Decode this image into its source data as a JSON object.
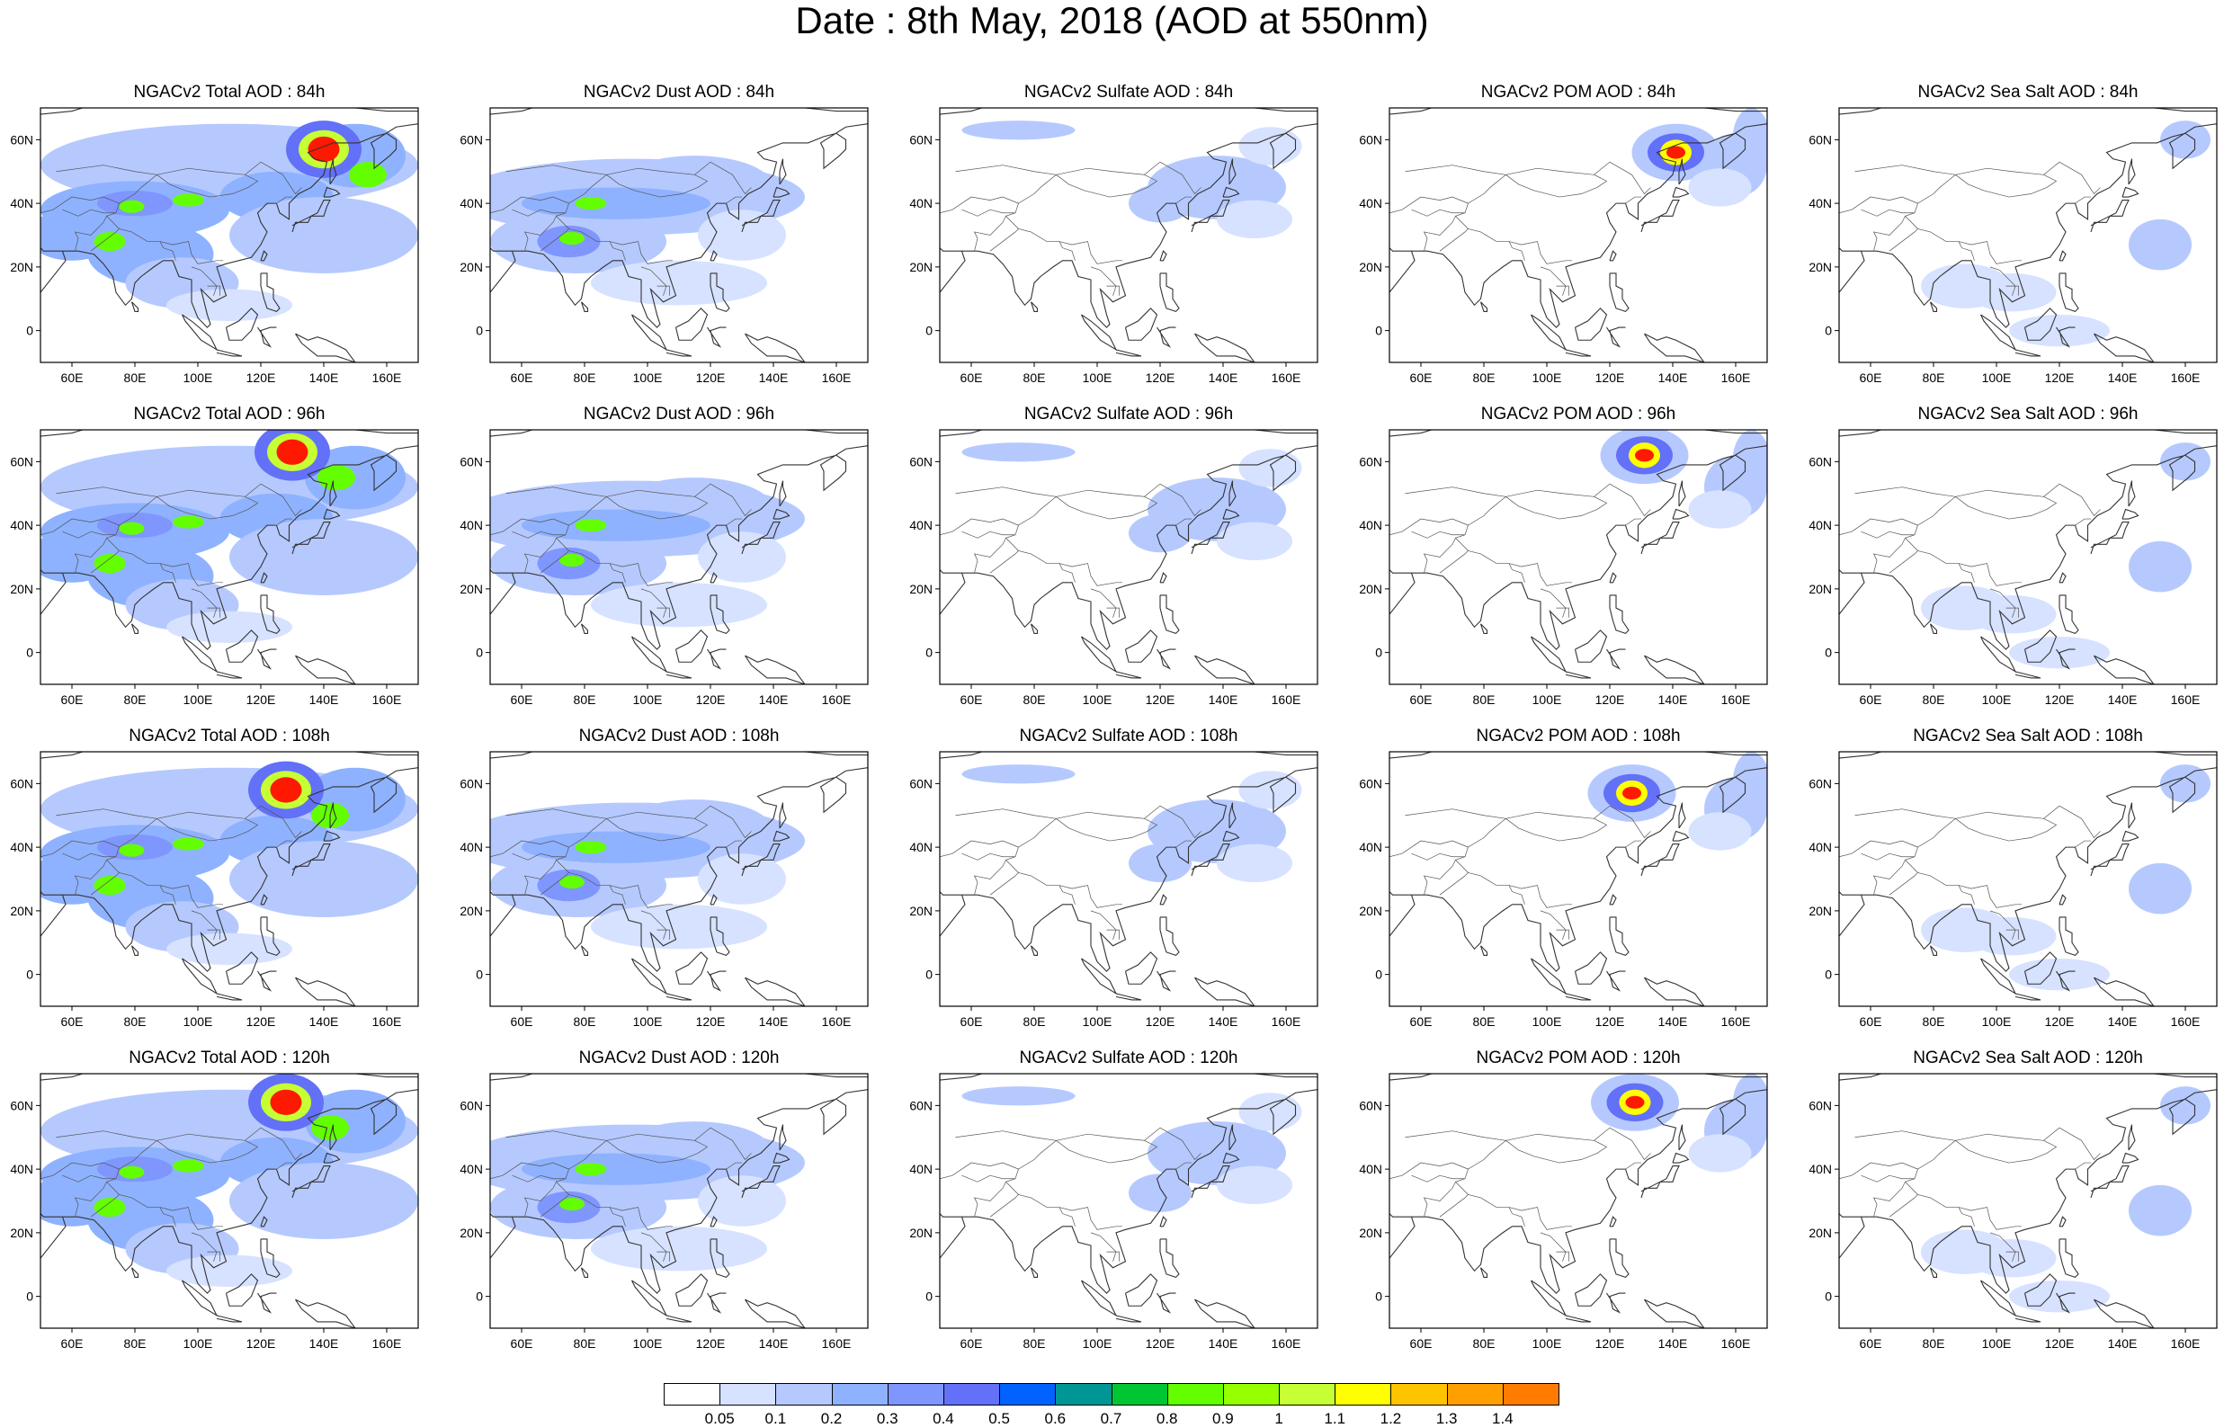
{
  "title": "Date : 8th May, 2018 (AOD at 550nm)",
  "rows": [
    [
      "NGACv2 Total AOD : 84h",
      "NGACv2 Dust AOD : 84h",
      "NGACv2 Sulfate AOD : 84h",
      "NGACv2 POM AOD : 84h",
      "NGACv2 Sea Salt AOD : 84h"
    ],
    [
      "NGACv2 Total AOD : 96h",
      "NGACv2 Dust AOD : 96h",
      "NGACv2 Sulfate AOD : 96h",
      "NGACv2 POM AOD : 96h",
      "NGACv2 Sea Salt AOD : 96h"
    ],
    [
      "NGACv2 Total AOD : 108h",
      "NGACv2 Dust AOD : 108h",
      "NGACv2 Sulfate AOD : 108h",
      "NGACv2 POM AOD : 108h",
      "NGACv2 Sea Salt AOD : 108h"
    ],
    [
      "NGACv2 Total AOD : 120h",
      "NGACv2 Dust AOD : 120h",
      "NGACv2 Sulfate AOD : 120h",
      "NGACv2 POM AOD : 120h",
      "NGACv2 Sea Salt  AOD : 120h"
    ]
  ],
  "axes": {
    "lon_ticks": [
      "60E",
      "80E",
      "100E",
      "120E",
      "140E",
      "160E"
    ],
    "lat_ticks": [
      "60N",
      "40N",
      "20N",
      "0"
    ],
    "lon_range": [
      50,
      170
    ],
    "lat_range": [
      -10,
      70
    ]
  },
  "colorbar": {
    "labels": [
      "0.05",
      "0.1",
      "0.2",
      "0.3",
      "0.4",
      "0.5",
      "0.6",
      "0.7",
      "0.8",
      "0.9",
      "1",
      "1.1",
      "1.2",
      "1.3",
      "1.4"
    ],
    "colors": [
      "#ffffff",
      "#d6e2ff",
      "#b5c9ff",
      "#8eb2ff",
      "#7f96ff",
      "#6370f8",
      "#0063ff",
      "#009696",
      "#00c633",
      "#63ff00",
      "#96ff00",
      "#c6ff33",
      "#ffff00",
      "#ffc400",
      "#ffa000",
      "#ff7c00",
      "#ff1900"
    ]
  },
  "species": [
    "total",
    "dust",
    "sulfate",
    "pom",
    "seasalt"
  ]
}
